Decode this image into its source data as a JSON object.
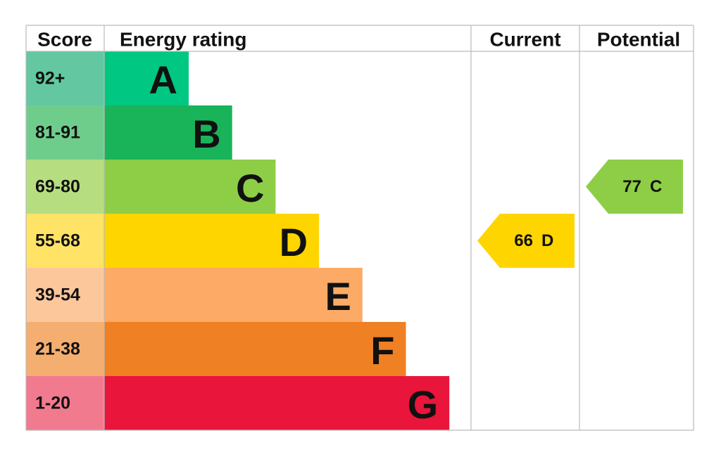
{
  "header": {
    "score": "Score",
    "energy_rating": "Energy rating",
    "current": "Current",
    "potential": "Potential"
  },
  "bands": [
    {
      "score": "92+",
      "letter": "A",
      "color": "#00c781",
      "score_color": "#63c8a2"
    },
    {
      "score": "81-91",
      "letter": "B",
      "color": "#19b459",
      "score_color": "#6fcd8c"
    },
    {
      "score": "69-80",
      "letter": "C",
      "color": "#8dce46",
      "score_color": "#b6de80"
    },
    {
      "score": "55-68",
      "letter": "D",
      "color": "#ffd500",
      "score_color": "#ffe367"
    },
    {
      "score": "39-54",
      "letter": "E",
      "color": "#fcaa65",
      "score_color": "#fdc79c"
    },
    {
      "score": "21-38",
      "letter": "F",
      "color": "#ef8023",
      "score_color": "#f4ae70"
    },
    {
      "score": "1-20",
      "letter": "G",
      "color": "#e9153b",
      "score_color": "#f27a8f"
    }
  ],
  "current": {
    "score": 66,
    "rating": "D"
  },
  "potential": {
    "score": 77,
    "rating": "C"
  }
}
